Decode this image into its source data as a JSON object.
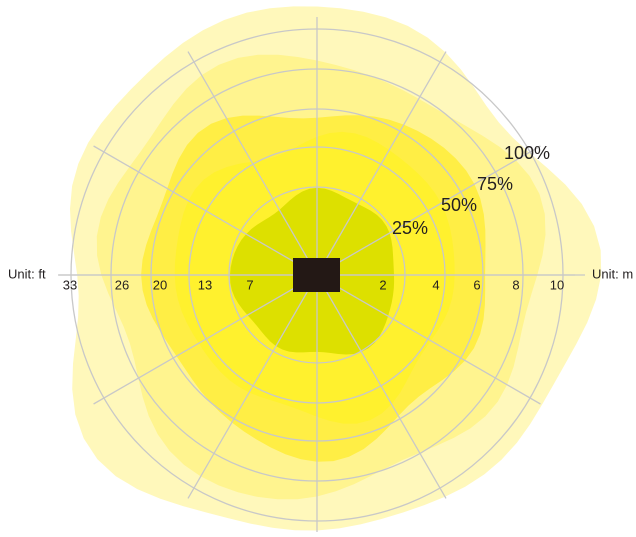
{
  "units": {
    "left": "Unit: ft",
    "right": "Unit: m"
  },
  "ft_labels": [
    "33",
    "26",
    "20",
    "13",
    "7"
  ],
  "m_labels": [
    "2",
    "4",
    "6",
    "8",
    "10"
  ],
  "coverage_labels": [
    "25%",
    "50%",
    "75%",
    "100%"
  ]
}
